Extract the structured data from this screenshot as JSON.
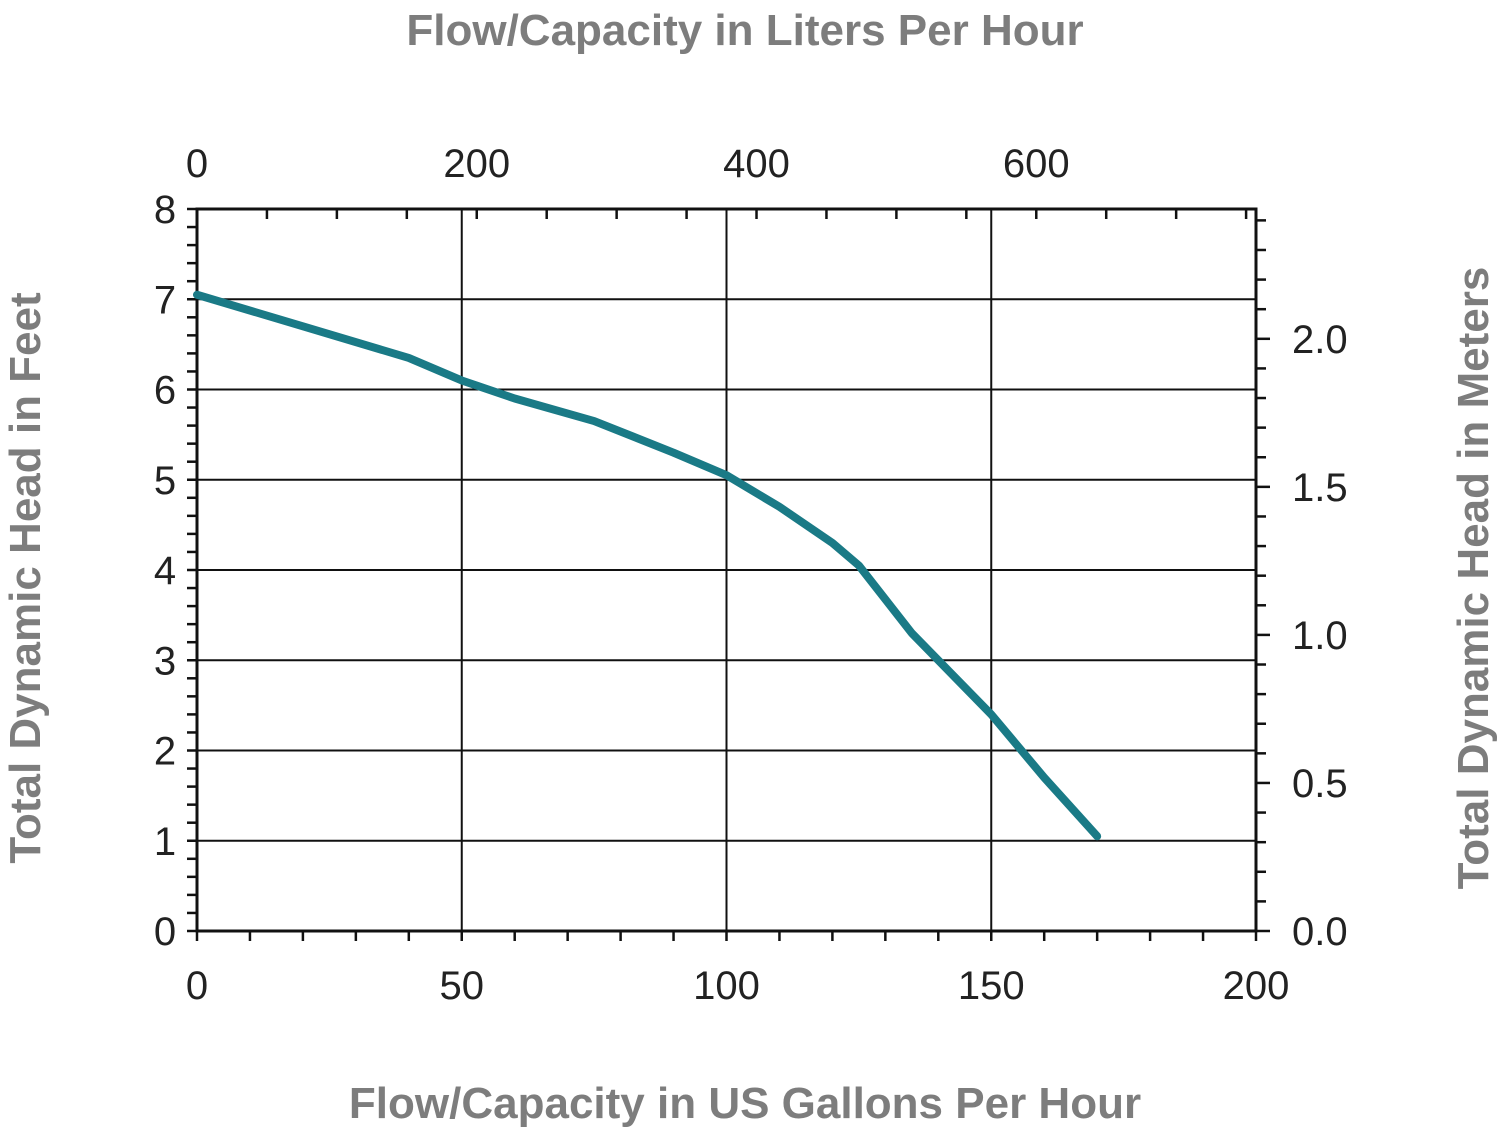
{
  "chart_data": {
    "type": "line",
    "title": "",
    "x": [
      0,
      20,
      40,
      50,
      60,
      75,
      90,
      100,
      110,
      120,
      125,
      135,
      150,
      160,
      170
    ],
    "series": [
      {
        "values": [
          7.05,
          6.7,
          6.35,
          6.1,
          5.9,
          5.65,
          5.3,
          5.05,
          4.7,
          4.3,
          4.05,
          3.3,
          2.4,
          1.7,
          1.05
        ]
      }
    ],
    "xlabel": "Flow/Capacity in US Gallons Per Hour",
    "x2label": "Flow/Capacity in Liters Per Hour",
    "ylabel": "Total Dynamic Head in Feet",
    "y2label": "Total Dynamic Head in Meters",
    "xlim": [
      0,
      200
    ],
    "ylim": [
      0,
      8
    ],
    "x_ticks": [
      0,
      50,
      100,
      150,
      200
    ],
    "x_tick_labels": [
      "0",
      "50",
      "100",
      "150",
      "200"
    ],
    "y_ticks": [
      0,
      1,
      2,
      3,
      4,
      5,
      6,
      7,
      8
    ],
    "y_tick_labels": [
      "0",
      "1",
      "2",
      "3",
      "4",
      "5",
      "6",
      "7",
      "8"
    ],
    "x2_ticks": [
      0,
      200,
      400,
      600
    ],
    "x2_tick_labels": [
      "0",
      "200",
      "400",
      "600"
    ],
    "y2_ticks": [
      0.0,
      0.5,
      1.0,
      1.5,
      2.0
    ],
    "y2_tick_labels": [
      "0.0",
      "0.5",
      "1.0",
      "1.5",
      "2.0"
    ],
    "grid": true,
    "line_color": "#1a7a86",
    "axis_title_color": "#7d7d7d"
  }
}
